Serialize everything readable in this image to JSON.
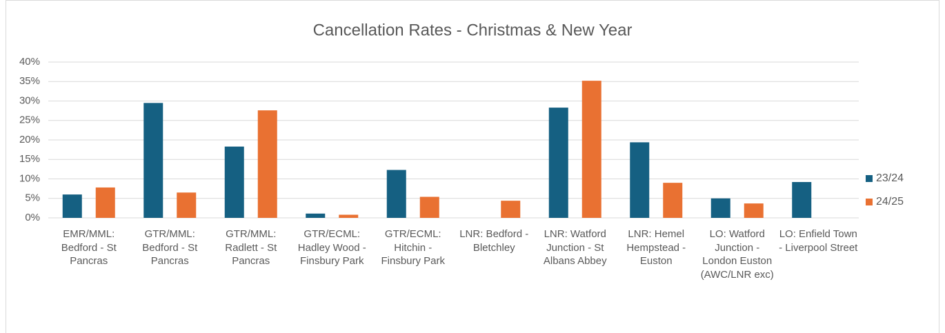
{
  "chart_data": {
    "type": "bar",
    "title": "Cancellation Rates - Christmas & New Year",
    "categories": [
      "EMR/MML: Bedford - St Pancras",
      "GTR/MML: Bedford - St Pancras",
      "GTR/MML: Radlett - St Pancras",
      "GTR/ECML: Hadley Wood - Finsbury Park",
      "GTR/ECML: Hitchin - Finsbury Park",
      "LNR: Bedford - Bletchley",
      "LNR: Watford Junction - St Albans Abbey",
      "LNR: Hemel Hempstead - Euston",
      "LO: Watford Junction - London Euston (AWC/LNR exc)",
      "LO: Enfield Town - Liverpool Street"
    ],
    "series": [
      {
        "name": "23/24",
        "color": "#156082",
        "values": [
          6.0,
          29.5,
          18.3,
          1.1,
          12.3,
          null,
          28.3,
          19.4,
          5.0,
          9.2
        ]
      },
      {
        "name": "24/25",
        "color": "#e97132",
        "values": [
          7.8,
          6.5,
          27.6,
          0.8,
          5.4,
          4.4,
          35.2,
          9.0,
          3.7,
          null
        ]
      }
    ],
    "ylim": [
      0,
      40
    ],
    "yticks": [
      {
        "value": 0,
        "label": "0%"
      },
      {
        "value": 5,
        "label": "5%"
      },
      {
        "value": 10,
        "label": "10%"
      },
      {
        "value": 15,
        "label": "15%"
      },
      {
        "value": 20,
        "label": "20%"
      },
      {
        "value": 25,
        "label": "25%"
      },
      {
        "value": 30,
        "label": "30%"
      },
      {
        "value": 35,
        "label": "35%"
      },
      {
        "value": 40,
        "label": "40%"
      }
    ],
    "grid": true,
    "legend": "right"
  }
}
